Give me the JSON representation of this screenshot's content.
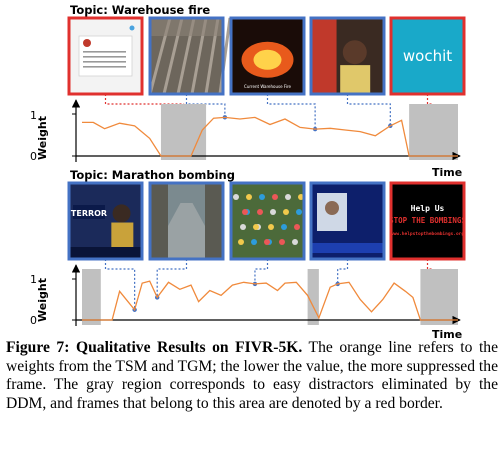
{
  "figure": {
    "panels": [
      {
        "topic": "Topic: Warehouse fire",
        "ylabel": "Weight",
        "xlabel": "Time",
        "yticks": [
          "0",
          "1"
        ],
        "frames": [
          {
            "border": "#e0302e",
            "overlay_text": ""
          },
          {
            "border": "#4472c4",
            "overlay_text": ""
          },
          {
            "border": "#4472c4",
            "overlay_text": "Current Warehouse Fire"
          },
          {
            "border": "#4472c4",
            "overlay_text": ""
          },
          {
            "border": "#e0302e",
            "overlay_text": "wochit"
          }
        ]
      },
      {
        "topic": "Topic: Marathon bombing",
        "ylabel": "Weight",
        "xlabel": "Time",
        "yticks": [
          "0",
          "1"
        ],
        "frames": [
          {
            "border": "#4472c4",
            "overlay_text": "TERROR"
          },
          {
            "border": "#4472c4",
            "overlay_text": ""
          },
          {
            "border": "#4472c4",
            "overlay_text": ""
          },
          {
            "border": "#4472c4",
            "overlay_text": ""
          },
          {
            "border": "#e0302e",
            "overlay_text": "Help Us\nSTOP THE BOMBINGS\nwww.helpstopthebombings.org"
          }
        ]
      }
    ],
    "colors": {
      "weight_line": "#f08a3c",
      "gray_region": "#c0c0c0",
      "distractor_border": "#e0302e",
      "normal_border": "#4472c4"
    }
  },
  "caption": {
    "label": "Figure 7:",
    "title": "Qualitative Results on FIVR-5K.",
    "body": "The orange line refers to the weights from the TSM and TGM; the lower the value, the more suppressed the frame. The gray region corresponds to easy distractors eliminated by the DDM, and frames that belong to this area are denoted by a red border."
  },
  "chart_data": [
    {
      "type": "line",
      "title": "Topic: Warehouse fire",
      "xlabel": "Time",
      "ylabel": "Weight",
      "ylim": [
        0,
        1
      ],
      "x": [
        0,
        0.03,
        0.06,
        0.1,
        0.14,
        0.18,
        0.21,
        0.23,
        0.26,
        0.29,
        0.32,
        0.35,
        0.38,
        0.42,
        0.46,
        0.5,
        0.54,
        0.58,
        0.62,
        0.66,
        0.7,
        0.74,
        0.78,
        0.82,
        0.85,
        0.87,
        0.9,
        0.93,
        0.96,
        1.0
      ],
      "y": [
        0.8,
        0.8,
        0.65,
        0.78,
        0.72,
        0.42,
        0.0,
        0.0,
        0.0,
        0.0,
        0.62,
        0.9,
        0.92,
        0.88,
        0.92,
        0.75,
        0.88,
        0.68,
        0.64,
        0.66,
        0.62,
        0.58,
        0.48,
        0.72,
        0.85,
        0.0,
        0.0,
        0.0,
        0.0,
        0.0
      ],
      "gray_regions": [
        [
          0.21,
          0.33
        ],
        [
          0.87,
          1.0
        ]
      ]
    },
    {
      "type": "line",
      "title": "Topic: Marathon bombing",
      "xlabel": "Time",
      "ylabel": "Weight",
      "ylim": [
        0,
        1
      ],
      "x": [
        0,
        0.03,
        0.06,
        0.08,
        0.1,
        0.14,
        0.16,
        0.18,
        0.2,
        0.23,
        0.26,
        0.29,
        0.31,
        0.34,
        0.37,
        0.4,
        0.43,
        0.46,
        0.49,
        0.52,
        0.54,
        0.57,
        0.6,
        0.63,
        0.66,
        0.68,
        0.71,
        0.74,
        0.77,
        0.8,
        0.83,
        0.86,
        0.88,
        0.9,
        0.93,
        0.96,
        1.0
      ],
      "y": [
        0.0,
        0.0,
        0.0,
        0.0,
        0.7,
        0.25,
        0.9,
        0.95,
        0.55,
        0.92,
        0.75,
        0.85,
        0.45,
        0.72,
        0.6,
        0.85,
        0.92,
        0.88,
        0.9,
        0.72,
        0.9,
        0.92,
        0.6,
        0.05,
        0.8,
        0.88,
        0.92,
        0.5,
        0.2,
        0.5,
        0.9,
        0.7,
        0.55,
        0.0,
        0.0,
        0.0,
        0.0
      ],
      "gray_regions": [
        [
          0.0,
          0.05
        ],
        [
          0.6,
          0.63
        ],
        [
          0.9,
          1.0
        ]
      ]
    }
  ]
}
